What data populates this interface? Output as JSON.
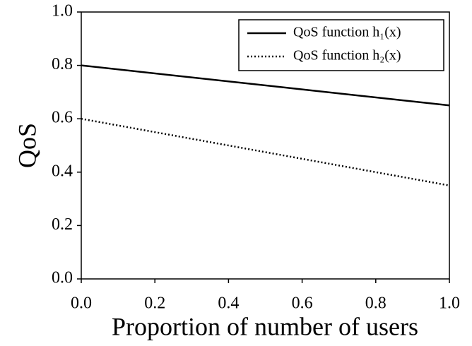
{
  "chart_data": {
    "type": "line",
    "xlabel": "Proportion of number of users",
    "ylabel": "QoS",
    "x": [
      0,
      1
    ],
    "series": [
      {
        "name": "QoS function h₁(x)",
        "color": "#000000",
        "dash": "solid",
        "values": [
          0.8,
          0.65
        ]
      },
      {
        "name": "QoS function h₂(x)",
        "color": "#000000",
        "dash": "dotted",
        "values": [
          0.6,
          0.35
        ]
      }
    ],
    "xlim": [
      0,
      1
    ],
    "ylim": [
      0,
      1
    ],
    "xticks": [
      {
        "value": 0,
        "label": "0.0"
      },
      0.2,
      0.4,
      0.6,
      0.8,
      {
        "value": 1,
        "label": "1.0"
      }
    ],
    "yticks": [
      {
        "value": 0,
        "label": "0.0"
      },
      0.2,
      0.4,
      0.6,
      0.8,
      {
        "value": 1,
        "label": "1.0"
      }
    ],
    "grid": false,
    "legend": "upper right"
  }
}
